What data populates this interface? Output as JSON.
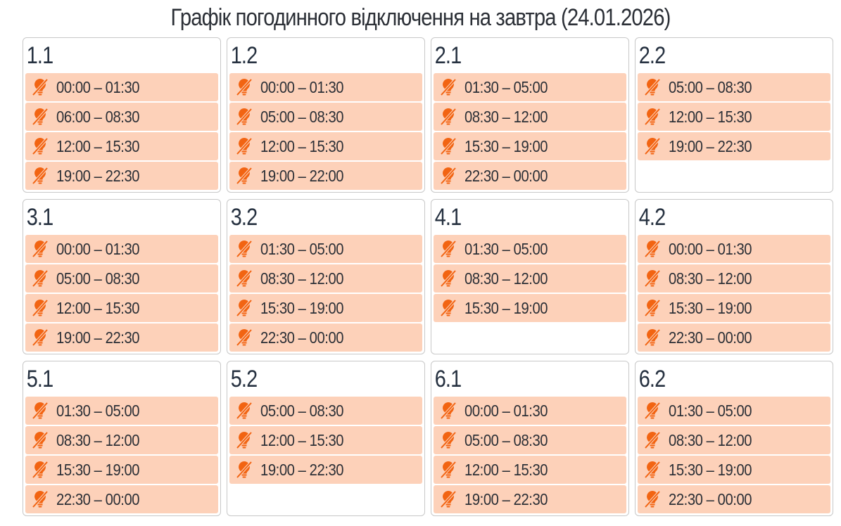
{
  "title": "Графік погодинного відключення на завтра (24.01.2026)",
  "colors": {
    "slot_bg": "#fdd1b9",
    "icon": "#f26412",
    "text": "#2b2f36"
  },
  "slot_icon": "lightbulb-off-icon",
  "groups": [
    {
      "name": "1.1",
      "slots": [
        "00:00 – 01:30",
        "06:00 – 08:30",
        "12:00 – 15:30",
        "19:00 – 22:30"
      ]
    },
    {
      "name": "1.2",
      "slots": [
        "00:00 – 01:30",
        "05:00 – 08:30",
        "12:00 – 15:30",
        "19:00 – 22:00"
      ]
    },
    {
      "name": "2.1",
      "slots": [
        "01:30 – 05:00",
        "08:30 – 12:00",
        "15:30 – 19:00",
        "22:30 – 00:00"
      ]
    },
    {
      "name": "2.2",
      "slots": [
        "05:00 – 08:30",
        "12:00 – 15:30",
        "19:00 – 22:30"
      ]
    },
    {
      "name": "3.1",
      "slots": [
        "00:00 – 01:30",
        "05:00 – 08:30",
        "12:00 – 15:30",
        "19:00 – 22:30"
      ]
    },
    {
      "name": "3.2",
      "slots": [
        "01:30 – 05:00",
        "08:30 – 12:00",
        "15:30 – 19:00",
        "22:30 – 00:00"
      ]
    },
    {
      "name": "4.1",
      "slots": [
        "01:30 – 05:00",
        "08:30 – 12:00",
        "15:30 – 19:00"
      ]
    },
    {
      "name": "4.2",
      "slots": [
        "00:00 – 01:30",
        "08:30 – 12:00",
        "15:30 – 19:00",
        "22:30 – 00:00"
      ]
    },
    {
      "name": "5.1",
      "slots": [
        "01:30 – 05:00",
        "08:30 – 12:00",
        "15:30 – 19:00",
        "22:30 – 00:00"
      ]
    },
    {
      "name": "5.2",
      "slots": [
        "05:00 – 08:30",
        "12:00 – 15:30",
        "19:00 – 22:30"
      ]
    },
    {
      "name": "6.1",
      "slots": [
        "00:00 – 01:30",
        "05:00 – 08:30",
        "12:00 – 15:30",
        "19:00 – 22:30"
      ]
    },
    {
      "name": "6.2",
      "slots": [
        "01:30 – 05:00",
        "08:30 – 12:00",
        "15:30 – 19:00",
        "22:30 – 00:00"
      ]
    }
  ]
}
